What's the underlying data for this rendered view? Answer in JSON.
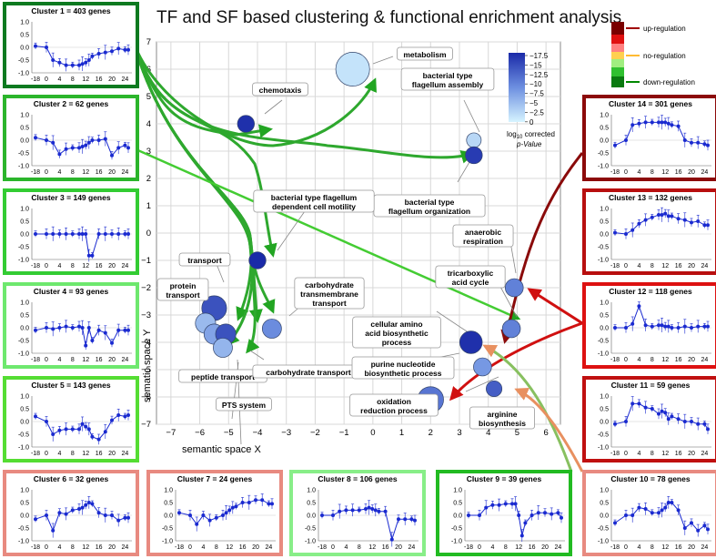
{
  "title": "TF and SF based clustering & functional enrichment analysis",
  "regulation_legend": [
    {
      "label": "up-regulation",
      "color": "#a00000"
    },
    {
      "label": "no-regulation",
      "color": "#ffbb33"
    },
    {
      "label": "down-regulation",
      "color": "#008800"
    }
  ],
  "colorbar": {
    "title_line1": "log",
    "title_sub": "10",
    "title_rest": " corrected",
    "title_line2": "p-Value",
    "ticks": [
      "−17.5",
      "−15",
      "−12.5",
      "−10",
      "−7.5",
      "−5",
      "−2.5",
      "0"
    ]
  },
  "chart_data": {
    "type": "scatter",
    "xlabel": "semantic space X",
    "ylabel": "sematic space Y",
    "xlim": [
      -7.5,
      6.5
    ],
    "ylim": [
      -7,
      7
    ],
    "xticks": [
      "−7",
      "−6",
      "−5",
      "−4",
      "−3",
      "−2",
      "−1",
      "0",
      "1",
      "2",
      "3",
      "4",
      "5",
      "6"
    ],
    "yticks": [
      "7",
      "6",
      "5",
      "4",
      "3",
      "2",
      "1",
      "0",
      "−1",
      "−2",
      "−3",
      "−4",
      "−5",
      "−6",
      "−7"
    ],
    "grid": true,
    "points": [
      {
        "name": "metabolism",
        "x": -0.7,
        "y": 6.0,
        "size": 3.0,
        "log10p": -1.5
      },
      {
        "name": "chemotaxis",
        "x": -4.4,
        "y": 4.0,
        "size": 1.5,
        "log10p": -17.0
      },
      {
        "name": "bacterial type flagellum assembly",
        "x": 3.5,
        "y": 3.4,
        "size": 1.3,
        "log10p": -2.5
      },
      {
        "name": "bacterial type flagellum organization",
        "x": 3.5,
        "y": 2.85,
        "size": 1.5,
        "log10p": -16.0
      },
      {
        "name": "bacterial type flagellum dependent cell motility",
        "x": -4.0,
        "y": -1.0,
        "size": 1.5,
        "log10p": -17.5
      },
      {
        "name": "transport",
        "x": -5.5,
        "y": -2.75,
        "size": 2.2,
        "log10p": -14.0
      },
      {
        "name": "protein transport",
        "x": -5.8,
        "y": -3.3,
        "size": 1.8,
        "log10p": -5.0
      },
      {
        "name": "peptide transport",
        "x": -5.5,
        "y": -3.7,
        "size": 1.8,
        "log10p": -7.0
      },
      {
        "name": "transport node",
        "x": -5.1,
        "y": -3.7,
        "size": 1.8,
        "log10p": -14.0
      },
      {
        "name": "carbohydrate transport",
        "x": -5.2,
        "y": -4.2,
        "size": 1.7,
        "log10p": -5.5
      },
      {
        "name": "carbohydrate transmembrane transport",
        "x": -3.5,
        "y": -3.5,
        "size": 1.7,
        "log10p": -9.0
      },
      {
        "name": "anaerobic respiration",
        "x": 4.9,
        "y": -2.0,
        "size": 1.6,
        "log10p": -10.0
      },
      {
        "name": "tricarboxylic acid cycle",
        "x": 4.8,
        "y": -3.5,
        "size": 1.6,
        "log10p": -10.0
      },
      {
        "name": "cellular amino acid biosynthetic process",
        "x": 3.4,
        "y": -4.0,
        "size": 2.0,
        "log10p": -17.0
      },
      {
        "name": "purine nucleotide biosynthetic process",
        "x": 3.8,
        "y": -4.9,
        "size": 1.6,
        "log10p": -8.0
      },
      {
        "name": "arginine biosynthesis",
        "x": 4.2,
        "y": -5.7,
        "size": 1.4,
        "log10p": -13.0
      },
      {
        "name": "oxidation reduction process",
        "x": 2.0,
        "y": -6.1,
        "size": 2.3,
        "log10p": -11.0
      }
    ],
    "labels": {
      "metabolism": "metabolism",
      "chemotaxis": "chemotaxis",
      "flag_asm_1": "bacterial type",
      "flag_asm_2": "flagellum assembly",
      "flag_org_1": "bacterial type",
      "flag_org_2": "flagellum organization",
      "motility_1": "bacterial type flagellum",
      "motility_2": "dependent cell motility",
      "transport": "transport",
      "protein_1": "protein",
      "protein_2": "transport",
      "peptide": "peptide transport",
      "pts": "PTS system",
      "carb_tm_1": "carbohydrate",
      "carb_tm_2": "transmembrane",
      "carb_tm_3": "transport",
      "carb_tr": "carbohydrate transport",
      "anaerobic_1": "anaerobic",
      "anaerobic_2": "respiration",
      "tca_1": "tricarboxylic",
      "tca_2": "acid cycle",
      "amino_1": "cellular amino",
      "amino_2": "acid biosynthetic",
      "amino_3": "process",
      "purine_1": "purine nucleotide",
      "purine_2": "biosynthetic process",
      "oxid_1": "oxidation",
      "oxid_2": "reduction process",
      "arg_1": "arginine",
      "arg_2": "biosynthesis"
    },
    "mini_x_ticks": [
      "-18",
      "0",
      "4",
      "8",
      "12",
      "16",
      "20",
      "24"
    ],
    "mini_y_ticks": [
      "1.0",
      "0.5",
      "0.0",
      "-0.5",
      "-1.0"
    ],
    "clusters": [
      {
        "title": "Cluster 1 = 403 genes",
        "border": "#0d7a20",
        "values": [
          0.05,
          0.0,
          -0.5,
          -0.6,
          -0.7,
          -0.7,
          -0.7,
          -0.65,
          -0.6,
          -0.5,
          -0.35,
          -0.25,
          -0.2,
          -0.15,
          -0.05,
          -0.1,
          -0.1
        ]
      },
      {
        "title": "Cluster 2 = 62 genes",
        "border": "#2bb52b",
        "values": [
          0.1,
          0.0,
          -0.1,
          -0.55,
          -0.35,
          -0.3,
          -0.3,
          -0.25,
          -0.2,
          -0.1,
          0.0,
          0.0,
          0.05,
          -0.6,
          -0.3,
          -0.2,
          -0.3
        ]
      },
      {
        "title": "Cluster 3 = 149 genes",
        "border": "#33cc33",
        "values": [
          0.0,
          0.0,
          0.0,
          0.0,
          0.0,
          0.0,
          0.0,
          0.0,
          0.0,
          -0.85,
          -0.85,
          0.0,
          0.0,
          0.0,
          0.0,
          0.0,
          0.0
        ]
      },
      {
        "title": "Cluster 4 = 93 genes",
        "border": "#6ee86e",
        "values": [
          -0.1,
          0.0,
          -0.05,
          0.0,
          0.05,
          0.0,
          0.05,
          0.0,
          -0.7,
          0.0,
          -0.5,
          -0.1,
          -0.2,
          -0.6,
          -0.1,
          -0.1,
          -0.1
        ]
      },
      {
        "title": "Cluster 5 = 143 genes",
        "border": "#55dd33",
        "values": [
          0.2,
          0.0,
          -0.5,
          -0.35,
          -0.3,
          -0.3,
          -0.3,
          -0.1,
          -0.2,
          -0.3,
          -0.6,
          -0.7,
          -0.4,
          0.05,
          0.25,
          0.2,
          0.25
        ]
      },
      {
        "title": "Cluster 6 = 32 genes",
        "border": "#e88a80",
        "values": [
          -0.15,
          0.0,
          -0.6,
          0.1,
          0.05,
          0.2,
          0.25,
          0.3,
          0.4,
          0.5,
          0.45,
          0.1,
          0.0,
          0.0,
          -0.2,
          -0.1,
          -0.1
        ]
      },
      {
        "title": "Cluster 7 = 24 genes",
        "border": "#e88a80",
        "values": [
          0.1,
          0.0,
          -0.35,
          0.0,
          -0.2,
          -0.1,
          0.0,
          0.1,
          0.2,
          0.3,
          0.35,
          0.5,
          0.5,
          0.6,
          0.6,
          0.45,
          0.45
        ]
      },
      {
        "title": "Cluster 8 = 106 genes",
        "border": "#88ee88",
        "values": [
          0.0,
          0.0,
          0.15,
          0.2,
          0.2,
          0.2,
          0.25,
          0.3,
          0.25,
          0.2,
          0.15,
          0.15,
          -0.95,
          -0.15,
          -0.15,
          -0.15,
          -0.2
        ]
      },
      {
        "title": "Cluster 9 = 39 genes",
        "border": "#22bb22",
        "values": [
          0.0,
          0.0,
          0.3,
          0.4,
          0.4,
          0.45,
          0.45,
          0.45,
          0.0,
          -0.8,
          -0.3,
          0.0,
          0.1,
          0.1,
          0.05,
          0.1,
          -0.1
        ]
      },
      {
        "title": "Cluster 10 = 78 genes",
        "border": "#e88a80",
        "values": [
          -0.3,
          0.0,
          0.0,
          0.3,
          0.25,
          0.1,
          0.1,
          0.2,
          0.3,
          0.5,
          0.5,
          0.2,
          -0.5,
          -0.3,
          -0.6,
          -0.4,
          -0.55
        ]
      },
      {
        "title": "Cluster 11 = 59 genes",
        "border": "#c01010",
        "values": [
          -0.1,
          0.0,
          0.7,
          0.7,
          0.55,
          0.5,
          0.3,
          0.4,
          0.35,
          0.1,
          0.2,
          0.1,
          0.0,
          0.0,
          -0.1,
          -0.1,
          -0.3
        ]
      },
      {
        "title": "Cluster 12 = 118 genes",
        "border": "#dd1111",
        "values": [
          0.0,
          0.0,
          0.15,
          0.85,
          0.1,
          0.05,
          0.1,
          0.1,
          0.05,
          0.05,
          0.0,
          0.0,
          0.05,
          0.0,
          0.05,
          0.05,
          0.05
        ]
      },
      {
        "title": "Cluster 13 = 132 genes",
        "border": "#b80f0f",
        "values": [
          0.05,
          0.0,
          0.15,
          0.4,
          0.55,
          0.65,
          0.75,
          0.75,
          0.8,
          0.7,
          0.7,
          0.6,
          0.55,
          0.45,
          0.5,
          0.35,
          0.35
        ]
      },
      {
        "title": "Cluster 14 = 301 genes",
        "border": "#8c0a0a",
        "values": [
          -0.2,
          0.0,
          0.6,
          0.65,
          0.7,
          0.7,
          0.7,
          0.7,
          0.7,
          0.65,
          0.6,
          0.55,
          0.0,
          -0.1,
          -0.1,
          -0.15,
          -0.2
        ]
      }
    ]
  }
}
